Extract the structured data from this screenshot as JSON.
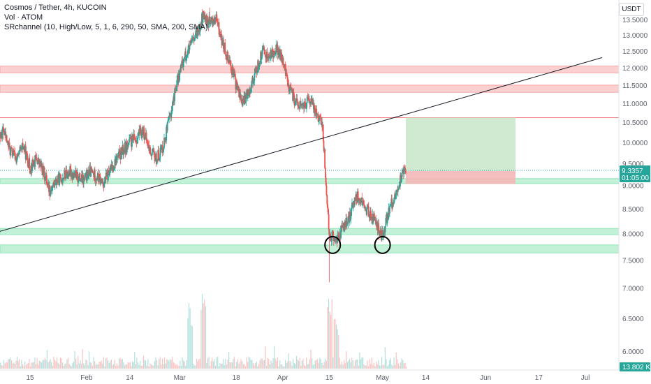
{
  "header": {
    "title": "Cosmos / Tether, 4h, KUCOIN",
    "volume_label": "Vol · ATOM",
    "indicator": "SRchannel (10, High/Low, 5, 1, 6, 290, 50, SMA, 200, SMA)",
    "currency": "USDT"
  },
  "chart_data": {
    "type": "candlestick",
    "y_axis": {
      "scale": "log",
      "range": [
        5.8,
        13.8
      ],
      "side": "right",
      "tick_labels": [
        "13.5000",
        "13.0000",
        "12.5000",
        "12.0000",
        "11.5000",
        "11.0000",
        "10.5000",
        "10.0000",
        "9.5000",
        "9.0000",
        "8.5000",
        "8.0000",
        "7.5000",
        "7.0000",
        "6.5000",
        "6.0000"
      ],
      "tick_values": [
        13.5,
        13.0,
        12.5,
        12.0,
        11.5,
        11.0,
        10.5,
        10.0,
        9.5,
        9.0,
        8.5,
        8.0,
        7.5,
        7.0,
        6.5,
        6.0
      ]
    },
    "x_axis": {
      "tick_labels": [
        "15",
        "Feb",
        "14",
        "Mar",
        "18",
        "Apr",
        "15",
        "May",
        "14",
        "Jun",
        "17",
        "Jul"
      ],
      "tick_dates": [
        "2023-01-15",
        "2023-02-01",
        "2023-02-14",
        "2023-03-01",
        "2023-03-18",
        "2023-04-01",
        "2023-04-15",
        "2023-05-01",
        "2023-05-14",
        "2023-06-01",
        "2023-06-17",
        "2023-07-01"
      ],
      "range": [
        "2023-01-01",
        "2023-07-06"
      ]
    },
    "price_path": [
      [
        "2023-01-01",
        8.6
      ],
      [
        "2023-01-03",
        9.3
      ],
      [
        "2023-01-05",
        9.9
      ],
      [
        "2023-01-07",
        10.3
      ],
      [
        "2023-01-09",
        9.8
      ],
      [
        "2023-01-11",
        9.6
      ],
      [
        "2023-01-13",
        9.9
      ],
      [
        "2023-01-15",
        9.4
      ],
      [
        "2023-01-17",
        9.6
      ],
      [
        "2023-01-19",
        9.3
      ],
      [
        "2023-01-21",
        8.9
      ],
      [
        "2023-01-23",
        9.1
      ],
      [
        "2023-01-25",
        9.2
      ],
      [
        "2023-01-27",
        9.3
      ],
      [
        "2023-01-29",
        9.2
      ],
      [
        "2023-01-31",
        9.1
      ],
      [
        "2023-02-02",
        9.3
      ],
      [
        "2023-02-04",
        9.2
      ],
      [
        "2023-02-06",
        9.05
      ],
      [
        "2023-02-08",
        9.3
      ],
      [
        "2023-02-10",
        9.6
      ],
      [
        "2023-02-12",
        9.8
      ],
      [
        "2023-02-14",
        10.0
      ],
      [
        "2023-02-16",
        10.1
      ],
      [
        "2023-02-18",
        10.3
      ],
      [
        "2023-02-20",
        9.8
      ],
      [
        "2023-02-22",
        9.6
      ],
      [
        "2023-02-24",
        9.9
      ],
      [
        "2023-02-26",
        10.6
      ],
      [
        "2023-02-28",
        11.5
      ],
      [
        "2023-03-02",
        12.2
      ],
      [
        "2023-03-04",
        12.6
      ],
      [
        "2023-03-06",
        13.0
      ],
      [
        "2023-03-08",
        13.6
      ],
      [
        "2023-03-10",
        13.4
      ],
      [
        "2023-03-12",
        13.5
      ],
      [
        "2023-03-14",
        12.7
      ],
      [
        "2023-03-16",
        12.2
      ],
      [
        "2023-03-18",
        11.5
      ],
      [
        "2023-03-20",
        11.0
      ],
      [
        "2023-03-22",
        11.4
      ],
      [
        "2023-03-24",
        11.9
      ],
      [
        "2023-03-26",
        12.5
      ],
      [
        "2023-03-28",
        12.3
      ],
      [
        "2023-03-30",
        12.6
      ],
      [
        "2023-04-01",
        12.2
      ],
      [
        "2023-04-03",
        11.4
      ],
      [
        "2023-04-05",
        11.0
      ],
      [
        "2023-04-07",
        10.9
      ],
      [
        "2023-04-09",
        11.1
      ],
      [
        "2023-04-11",
        10.8
      ],
      [
        "2023-04-13",
        10.4
      ],
      [
        "2023-04-14",
        9.0
      ],
      [
        "2023-04-15",
        8.0
      ],
      [
        "2023-04-17",
        7.85
      ],
      [
        "2023-04-19",
        8.1
      ],
      [
        "2023-04-21",
        8.3
      ],
      [
        "2023-04-23",
        8.8
      ],
      [
        "2023-04-25",
        8.6
      ],
      [
        "2023-04-27",
        8.4
      ],
      [
        "2023-04-29",
        8.2
      ],
      [
        "2023-05-01",
        7.95
      ],
      [
        "2023-05-03",
        8.5
      ],
      [
        "2023-05-05",
        8.8
      ],
      [
        "2023-05-06",
        9.0
      ],
      [
        "2023-05-07",
        9.35
      ],
      [
        "2023-05-08",
        9.34
      ]
    ],
    "wick_extremes": [
      {
        "date": "2023-04-15",
        "low": 7.1
      },
      {
        "date": "2023-03-10",
        "high": 13.9
      }
    ],
    "last_price": "9.3357",
    "countdown": "01:05:00",
    "volume": {
      "last_label": "13.802 K",
      "spikes": [
        {
          "date": "2023-03-08",
          "relative": 1.0
        },
        {
          "date": "2023-03-04",
          "relative": 0.75
        },
        {
          "date": "2023-04-15",
          "relative": 0.95
        },
        {
          "date": "2023-04-17",
          "relative": 0.55
        }
      ]
    },
    "support_resistance_zones": [
      {
        "top": 12.05,
        "bottom": 11.85,
        "color": "#f7a9a9"
      },
      {
        "top": 11.5,
        "bottom": 11.3,
        "color": "#f7a9a9"
      },
      {
        "top": 9.15,
        "bottom": 9.04,
        "color": "#8fe6b6"
      },
      {
        "top": 8.1,
        "bottom": 7.98,
        "color": "#8fe6b6"
      },
      {
        "top": 7.78,
        "bottom": 7.63,
        "color": "#8fe6b6"
      }
    ],
    "horizontal_level": {
      "value": 10.62,
      "color": "#f08080"
    },
    "trendline": {
      "from": [
        "2023-01-01",
        7.95
      ],
      "to": [
        "2023-07-06",
        12.3
      ],
      "color": "#131722"
    },
    "position": {
      "start": "2023-05-08",
      "end": "2023-06-10",
      "entry": 9.32,
      "target": 10.62,
      "stop": 9.03,
      "profit_color": "#c8e6c9",
      "loss_color": "#f4b7b7"
    },
    "annotations": [
      {
        "type": "circle",
        "date": "2023-04-16",
        "price": 7.78
      },
      {
        "type": "circle",
        "date": "2023-05-01",
        "price": 7.78
      }
    ],
    "colors": {
      "up": "#26a69a",
      "down": "#ef5350",
      "text": "#131722",
      "axis_text": "#5d606b",
      "last_price_bg": "#26a69a"
    }
  }
}
